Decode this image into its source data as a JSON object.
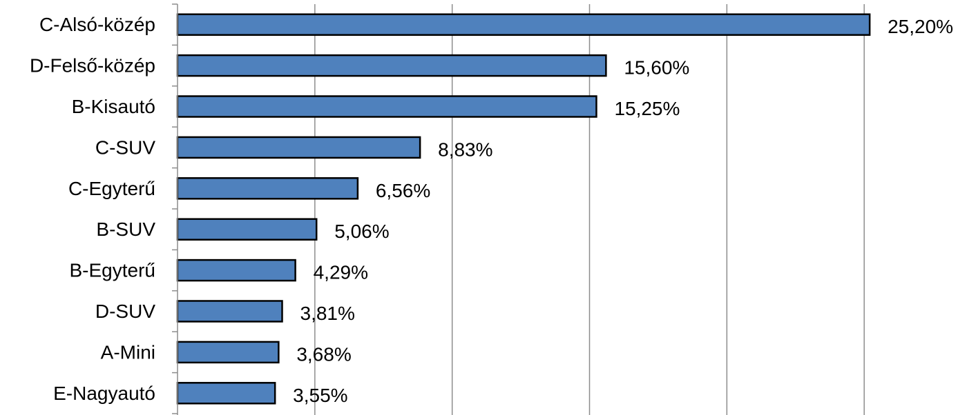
{
  "chart_data": {
    "type": "bar",
    "orientation": "horizontal",
    "title": "",
    "xlabel": "",
    "ylabel": "",
    "categories": [
      "C-Alsó-közép",
      "D-Felső-közép",
      "B-Kisautó",
      "C-SUV",
      "C-Egyterű",
      "B-SUV",
      "B-Egyterű",
      "D-SUV",
      "A-Mini",
      "E-Nagyautó"
    ],
    "values": [
      25.2,
      15.6,
      15.25,
      8.83,
      6.56,
      5.06,
      4.29,
      3.81,
      3.68,
      3.55
    ],
    "value_labels": [
      "25,20%",
      "15,60%",
      "15,25%",
      "8,83%",
      "6,56%",
      "5,06%",
      "4,29%",
      "3,81%",
      "3,68%",
      "3,55%"
    ],
    "xlim": [
      0,
      30
    ],
    "grid": "vertical",
    "legend": "none",
    "bar_color": "#4F81BD",
    "bar_edge_color": "#000000"
  }
}
